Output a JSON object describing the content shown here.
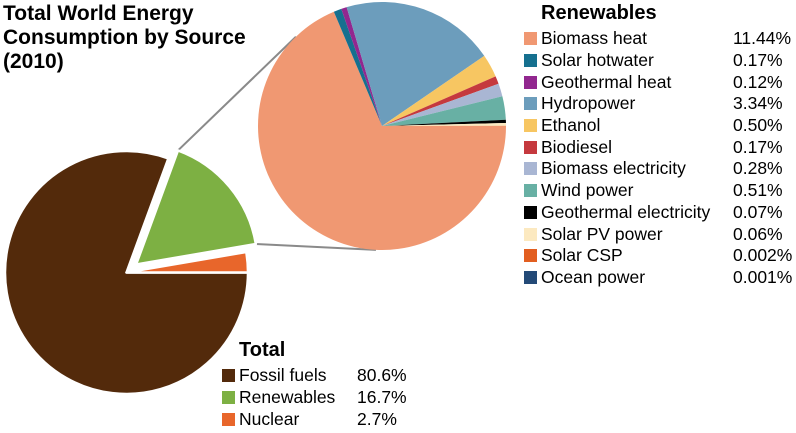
{
  "title": {
    "full": "Total World Energy Consumption by Source (2010)",
    "lines": [
      "Total World Energy",
      "Consumption by Source",
      "(2010)"
    ]
  },
  "renewables_legend": {
    "header": "Renewables",
    "items": [
      {
        "label": "Biomass heat",
        "value": "11.44%",
        "color": "#F09872"
      },
      {
        "label": "Solar hotwater",
        "value": "0.17%",
        "color": "#16708F"
      },
      {
        "label": "Geothermal heat",
        "value": "0.12%",
        "color": "#92278F"
      },
      {
        "label": "Hydropower",
        "value": "3.34%",
        "color": "#6C9DBC"
      },
      {
        "label": "Ethanol",
        "value": "0.50%",
        "color": "#F7C662"
      },
      {
        "label": "Biodiesel",
        "value": "0.17%",
        "color": "#C5393E"
      },
      {
        "label": "Biomass electricity",
        "value": "0.28%",
        "color": "#A9B6D3"
      },
      {
        "label": "Wind power",
        "value": "0.51%",
        "color": "#68B0A4"
      },
      {
        "label": "Geothermal electricity",
        "value": "0.07%",
        "color": "#000000"
      },
      {
        "label": "Solar PV power",
        "value": "0.06%",
        "color": "#FCE9C0"
      },
      {
        "label": "Solar CSP",
        "value": "0.002%",
        "color": "#E25E20"
      },
      {
        "label": "Ocean power",
        "value": "0.001%",
        "color": "#234A77"
      }
    ]
  },
  "total_legend": {
    "header": "Total",
    "items": [
      {
        "label": "Fossil fuels",
        "value": "80.6%",
        "color": "#532A0B"
      },
      {
        "label": "Renewables",
        "value": "16.7%",
        "color": "#7DB043"
      },
      {
        "label": "Nuclear",
        "value": "2.7%",
        "color": "#E8662B"
      }
    ]
  },
  "chart_data": {
    "type": "pie",
    "subtype": "pie-of-pie",
    "title": "Total World Energy Consumption by Source (2010)",
    "main_pie": {
      "name": "Total",
      "start_angle_deg": 0,
      "direction": "clockwise",
      "slices": [
        {
          "label": "Fossil fuels",
          "value": 80.6,
          "color": "#532A0B",
          "exploded": false
        },
        {
          "label": "Renewables",
          "value": 16.7,
          "color": "#7DB043",
          "exploded": true
        },
        {
          "label": "Nuclear",
          "value": 2.7,
          "color": "#E8662B",
          "exploded": false
        }
      ]
    },
    "detail_pie": {
      "name": "Renewables",
      "start_angle_deg": 0,
      "direction": "clockwise",
      "slices": [
        {
          "label": "Biomass heat",
          "value": 11.44,
          "color": "#F09872"
        },
        {
          "label": "Solar hotwater",
          "value": 0.17,
          "color": "#16708F"
        },
        {
          "label": "Geothermal heat",
          "value": 0.12,
          "color": "#92278F"
        },
        {
          "label": "Hydropower",
          "value": 3.34,
          "color": "#6C9DBC"
        },
        {
          "label": "Ethanol",
          "value": 0.5,
          "color": "#F7C662"
        },
        {
          "label": "Biodiesel",
          "value": 0.17,
          "color": "#C5393E"
        },
        {
          "label": "Biomass electricity",
          "value": 0.28,
          "color": "#A9B6D3"
        },
        {
          "label": "Wind power",
          "value": 0.51,
          "color": "#68B0A4"
        },
        {
          "label": "Geothermal electricity",
          "value": 0.07,
          "color": "#000000"
        },
        {
          "label": "Solar PV power",
          "value": 0.06,
          "color": "#FCE9C0"
        },
        {
          "label": "Solar CSP",
          "value": 0.002,
          "color": "#E25E20"
        },
        {
          "label": "Ocean power",
          "value": 0.001,
          "color": "#234A77"
        }
      ]
    },
    "connector_color": "#8A8A8A",
    "legend_position": "right-and-bottom",
    "grid": false
  }
}
